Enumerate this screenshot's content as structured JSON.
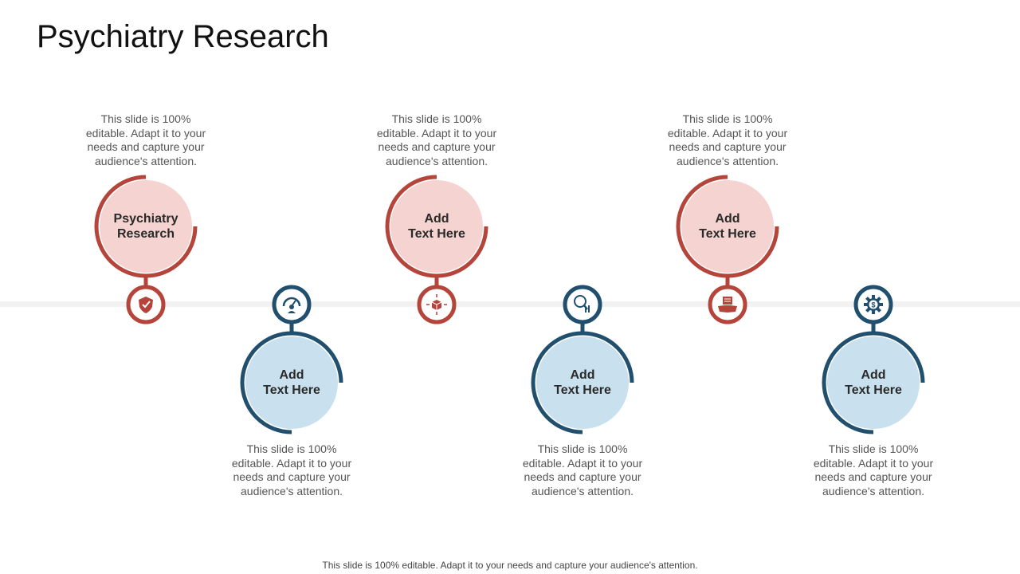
{
  "title": "Psychiatry Research",
  "footer": "This slide is 100% editable. Adapt it to your needs and capture your audience's attention.",
  "colors": {
    "red_ring": "#b5443a",
    "red_fill": "#f5d3d0",
    "blue_ring": "#21506f",
    "blue_fill": "#c9e1ee",
    "timeline": "#f2f2f2"
  },
  "steps": [
    {
      "label": "Psychiatry\nResearch",
      "description": "This slide is 100% editable. Adapt it to your needs and capture your audience's attention.",
      "icon": "shield-check-icon",
      "color": "red"
    },
    {
      "label": "Add\nText Here",
      "description": "This slide is 100% editable. Adapt it to your needs and capture your audience's attention.",
      "icon": "gauge-person-icon",
      "color": "blue"
    },
    {
      "label": "Add\nText Here",
      "description": "This slide is 100% editable. Adapt it to your needs and capture your audience's attention.",
      "icon": "cube-arrows-icon",
      "color": "red"
    },
    {
      "label": "Add\nText Here",
      "description": "This slide is 100% editable. Adapt it to your needs and capture your audience's attention.",
      "icon": "magnifier-chart-icon",
      "color": "blue"
    },
    {
      "label": "Add\nText Here",
      "description": "This slide is 100% editable. Adapt it to your needs and capture your audience's attention.",
      "icon": "handshake-document-icon",
      "color": "red"
    },
    {
      "label": "Add\nText Here",
      "description": "This slide is 100% editable. Adapt it to your needs and capture your audience's attention.",
      "icon": "gear-dollar-icon",
      "color": "blue"
    }
  ]
}
